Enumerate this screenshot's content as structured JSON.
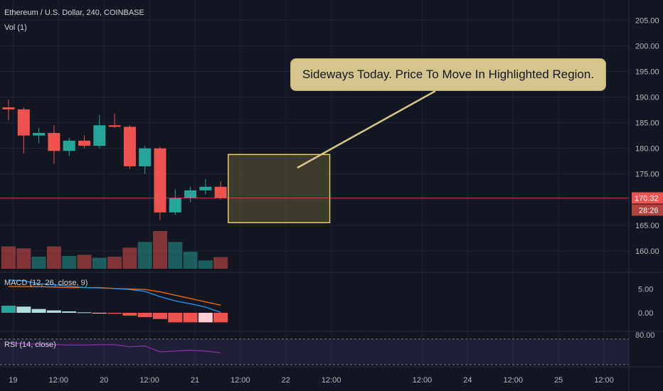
{
  "header": {
    "symbol_line": "Ethereum / U.S. Dollar, 240, COINBASE",
    "volume_label": "Vol (1)"
  },
  "annotation": {
    "text": "Sideways Today. Price To Move In Highlighted Region."
  },
  "price_badge": {
    "value": "170.32",
    "countdown": "28:26"
  },
  "macd_label": "MACD (12, 26, close, 9)",
  "rsi_label": "RSI (14, close)",
  "colors": {
    "background": "#131722",
    "up": "#26a69a",
    "down": "#ef5350",
    "macd_line": "#2196f3",
    "signal_line": "#ff6d00",
    "rsi_line": "#9c27b0",
    "annotation_bg": "#d4c58c",
    "highlight_border": "#e6cf62"
  },
  "chart_data": [
    {
      "type": "candlestick",
      "title": "Ethereum / U.S. Dollar, 240, COINBASE",
      "y_ticks": [
        "205.00",
        "200.00",
        "195.00",
        "190.00",
        "185.00",
        "180.00",
        "175.00",
        "170.00",
        "165.00",
        "160.00"
      ],
      "ylim": [
        156,
        207
      ],
      "x_ticks": [
        {
          "label": "19",
          "slot": 0.3
        },
        {
          "label": "12:00",
          "slot": 3.3
        },
        {
          "label": "20",
          "slot": 6.3
        },
        {
          "label": "12:00",
          "slot": 9.3
        },
        {
          "label": "21",
          "slot": 12.3
        },
        {
          "label": "12:00",
          "slot": 15.3
        },
        {
          "label": "22",
          "slot": 18.3
        },
        {
          "label": "12:00",
          "slot": 21.3
        },
        {
          "label": "12:00",
          "slot": 27.3
        },
        {
          "label": "24",
          "slot": 30.3
        },
        {
          "label": "12:00",
          "slot": 33.3
        },
        {
          "label": "25",
          "slot": 36.3
        },
        {
          "label": "12:00",
          "slot": 39.3
        }
      ],
      "candles": [
        {
          "o": 188.0,
          "h": 189.5,
          "l": 185.5,
          "c": 187.6
        },
        {
          "o": 187.6,
          "h": 188.0,
          "l": 179.0,
          "c": 182.5
        },
        {
          "o": 182.5,
          "h": 184.0,
          "l": 181.0,
          "c": 183.0
        },
        {
          "o": 183.0,
          "h": 184.5,
          "l": 177.0,
          "c": 179.5
        },
        {
          "o": 179.5,
          "h": 182.0,
          "l": 178.5,
          "c": 181.5
        },
        {
          "o": 181.5,
          "h": 182.5,
          "l": 180.0,
          "c": 180.5
        },
        {
          "o": 180.5,
          "h": 186.5,
          "l": 180.0,
          "c": 184.5
        },
        {
          "o": 184.5,
          "h": 186.8,
          "l": 184.0,
          "c": 184.2
        },
        {
          "o": 184.2,
          "h": 184.5,
          "l": 176.0,
          "c": 176.5
        },
        {
          "o": 176.5,
          "h": 180.5,
          "l": 175.0,
          "c": 180.0
        },
        {
          "o": 180.0,
          "h": 180.3,
          "l": 166.0,
          "c": 167.5
        },
        {
          "o": 167.5,
          "h": 172.0,
          "l": 167.0,
          "c": 170.3
        },
        {
          "o": 170.3,
          "h": 172.5,
          "l": 169.5,
          "c": 171.8
        },
        {
          "o": 171.8,
          "h": 174.0,
          "l": 171.0,
          "c": 172.5
        },
        {
          "o": 172.5,
          "h": 173.5,
          "l": 170.0,
          "c": 170.32
        }
      ],
      "last_price": 170.32,
      "highlight_region": {
        "from_slot": 14.5,
        "to_slot": 21.2,
        "top": 178.8,
        "bottom": 165.5
      }
    },
    {
      "type": "bar",
      "title": "Vol (1)",
      "values": [
        0.59,
        0.54,
        0.32,
        0.59,
        0.34,
        0.37,
        0.29,
        0.32,
        0.56,
        0.71,
        1.0,
        0.71,
        0.45,
        0.22,
        0.31
      ],
      "up": [
        false,
        false,
        true,
        false,
        true,
        false,
        true,
        false,
        false,
        true,
        false,
        true,
        true,
        true,
        false
      ]
    },
    {
      "type": "line",
      "title": "MACD (12, 26, close, 9)",
      "y_ticks": [
        "5.00",
        "0.00"
      ],
      "ylim": [
        -3.0,
        7.5
      ],
      "macd": [
        6.9,
        6.7,
        6.1,
        5.9,
        5.6,
        5.3,
        5.2,
        5.1,
        4.9,
        4.5,
        3.4,
        2.5,
        1.9,
        1.2,
        0.1
      ],
      "signal": [
        5.5,
        5.5,
        5.5,
        5.4,
        5.3,
        5.3,
        5.3,
        5.1,
        5.0,
        4.9,
        4.4,
        3.7,
        3.0,
        2.3,
        1.6
      ],
      "histogram": [
        1.5,
        1.3,
        0.8,
        0.5,
        0.3,
        0.1,
        -0.1,
        -0.2,
        -0.6,
        -0.9,
        -1.3,
        -2.0,
        -2.0,
        -2.0,
        -2.0
      ],
      "histogram_colors": [
        "#26a69a",
        "#b2dfdb",
        "#b2dfdb",
        "#b2dfdb",
        "#b2dfdb",
        "#b2dfdb",
        "#ffcdd2",
        "#ef5350",
        "#ef5350",
        "#ef5350",
        "#ef5350",
        "#ef5350",
        "#ef5350",
        "#ffcdd2",
        "#ef5350"
      ]
    },
    {
      "type": "line",
      "title": "RSI (14, close)",
      "y_ticks": [
        "80.00"
      ],
      "ylim": [
        20,
        80
      ],
      "values": [
        71,
        69,
        68,
        67,
        66,
        66,
        67,
        67,
        62,
        64,
        50,
        52,
        54,
        52,
        48
      ]
    }
  ]
}
